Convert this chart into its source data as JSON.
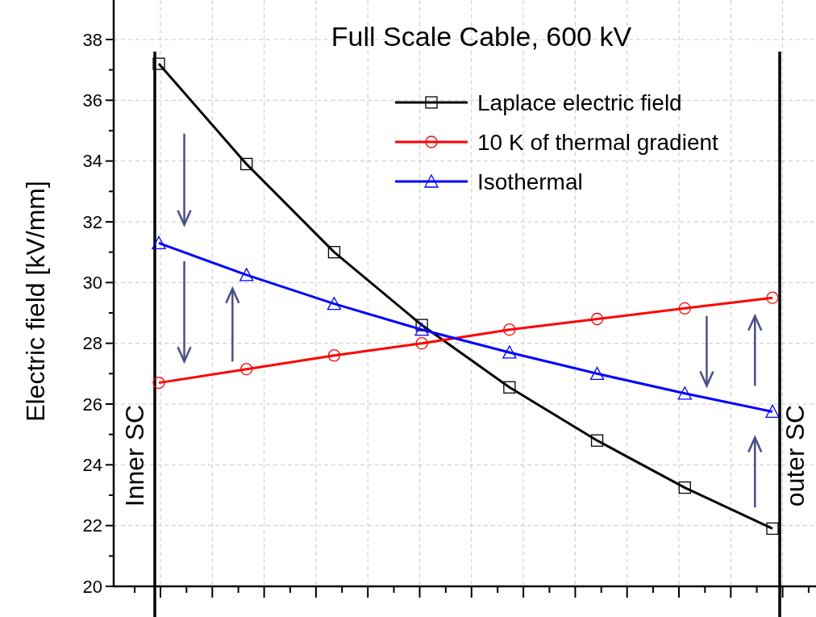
{
  "chart_data": {
    "type": "line",
    "title": "Full Scale Cable, 600 kV",
    "ylabel": "Electric field [kV/mm]",
    "categories": [
      null,
      null,
      null,
      null,
      null,
      null,
      null,
      null
    ],
    "ylim": [
      20,
      39.3
    ],
    "yticks": [
      20,
      22,
      24,
      26,
      28,
      30,
      32,
      34,
      36,
      38
    ],
    "grid": true,
    "legend": "top right",
    "series": [
      {
        "name": "Laplace electric field",
        "color": "#000000",
        "marker": "square",
        "values": [
          37.2,
          33.9,
          31.0,
          28.6,
          26.55,
          24.8,
          23.25,
          21.9
        ]
      },
      {
        "name": "10 K of thermal gradient",
        "color": "#ff0000",
        "marker": "circle",
        "values": [
          26.7,
          27.15,
          27.6,
          28.0,
          28.45,
          28.8,
          29.15,
          29.5
        ]
      },
      {
        "name": "Isothermal",
        "color": "#0000ff",
        "marker": "triangle",
        "values": [
          31.3,
          30.25,
          29.3,
          28.45,
          27.7,
          27.0,
          26.35,
          25.75
        ]
      }
    ],
    "annotations": [
      "Inner SC",
      "outer SC"
    ]
  }
}
